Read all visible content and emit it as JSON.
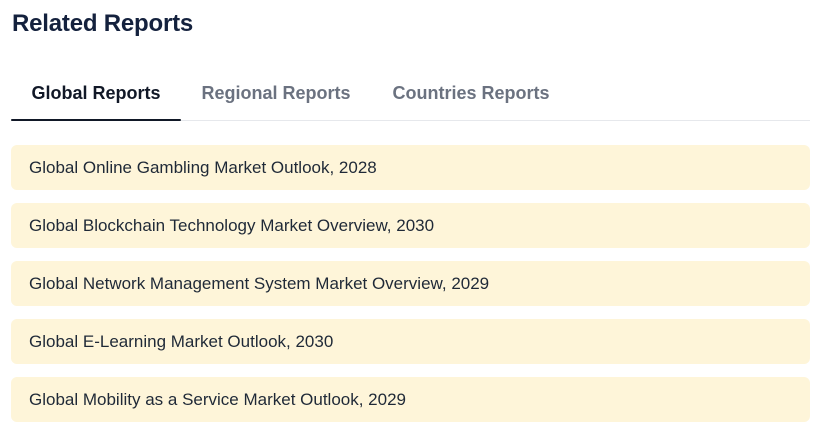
{
  "section": {
    "title": "Related Reports"
  },
  "tabs": [
    {
      "label": "Global Reports",
      "active": true
    },
    {
      "label": "Regional Reports",
      "active": false
    },
    {
      "label": "Countries Reports",
      "active": false
    }
  ],
  "reports": [
    {
      "title": "Global Online Gambling Market Outlook, 2028"
    },
    {
      "title": "Global Blockchain Technology Market Overview, 2030"
    },
    {
      "title": "Global Network Management System Market Overview, 2029"
    },
    {
      "title": "Global E-Learning Market Outlook, 2030"
    },
    {
      "title": "Global Mobility as a Service Market Outlook, 2029"
    }
  ],
  "colors": {
    "title": "#14213d",
    "active_tab": "#111827",
    "inactive_tab": "#6b7280",
    "item_background": "#fef5d9"
  }
}
